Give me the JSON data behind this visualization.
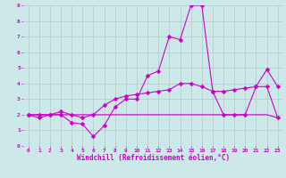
{
  "title": "",
  "xlabel": "Windchill (Refroidissement éolien,°C)",
  "background_color": "#cce8e8",
  "grid_color": "#b0c8c8",
  "line_color": "#cc00cc",
  "xlim": [
    -0.5,
    23.5
  ],
  "ylim": [
    0,
    9
  ],
  "xticks": [
    0,
    1,
    2,
    3,
    4,
    5,
    6,
    7,
    8,
    9,
    10,
    11,
    12,
    13,
    14,
    15,
    16,
    17,
    18,
    19,
    20,
    21,
    22,
    23
  ],
  "yticks": [
    0,
    1,
    2,
    3,
    4,
    5,
    6,
    7,
    8,
    9
  ],
  "line1_x": [
    0,
    1,
    2,
    3,
    4,
    5,
    6,
    7,
    8,
    9,
    10,
    11,
    12,
    13,
    14,
    15,
    16,
    17,
    18,
    19,
    20,
    21,
    22,
    23
  ],
  "line1_y": [
    2.0,
    1.8,
    2.0,
    2.0,
    1.5,
    1.4,
    0.6,
    1.3,
    2.5,
    3.0,
    3.0,
    4.5,
    4.8,
    7.0,
    6.8,
    9.0,
    9.0,
    3.5,
    2.0,
    2.0,
    2.0,
    3.8,
    4.9,
    3.8
  ],
  "line2_x": [
    0,
    1,
    2,
    3,
    4,
    5,
    6,
    7,
    8,
    9,
    10,
    11,
    12,
    13,
    14,
    15,
    16,
    17,
    18,
    19,
    20,
    21,
    22,
    23
  ],
  "line2_y": [
    2.0,
    2.0,
    2.0,
    2.2,
    2.0,
    1.8,
    2.0,
    2.6,
    3.0,
    3.2,
    3.3,
    3.4,
    3.5,
    3.6,
    4.0,
    4.0,
    3.8,
    3.5,
    3.5,
    3.6,
    3.7,
    3.8,
    3.8,
    1.8
  ],
  "line3_x": [
    0,
    1,
    2,
    3,
    4,
    5,
    6,
    7,
    8,
    9,
    10,
    11,
    12,
    13,
    14,
    15,
    16,
    17,
    18,
    19,
    20,
    21,
    22,
    23
  ],
  "line3_y": [
    2.0,
    2.0,
    2.0,
    2.0,
    2.0,
    2.0,
    2.0,
    2.0,
    2.0,
    2.0,
    2.0,
    2.0,
    2.0,
    2.0,
    2.0,
    2.0,
    2.0,
    2.0,
    2.0,
    2.0,
    2.0,
    2.0,
    2.0,
    1.8
  ],
  "markersize": 2.5,
  "linewidth": 0.8,
  "tick_fontsize": 4.5,
  "label_fontsize": 5.5
}
